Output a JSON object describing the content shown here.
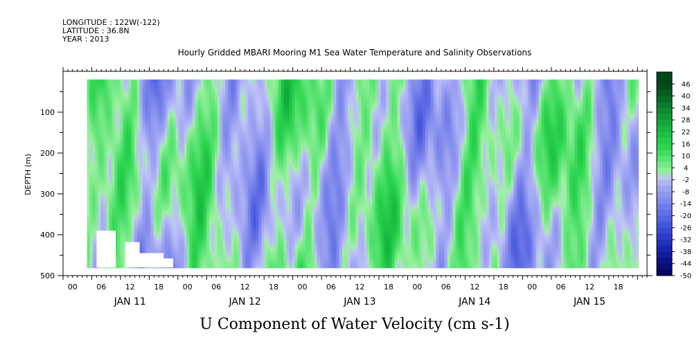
{
  "meta": {
    "longitude": "LONGITUDE : 122W(-122)",
    "latitude": "LATITUDE : 36.8N",
    "year": "YEAR : 2013"
  },
  "chart_data": {
    "type": "heatmap",
    "title": "Hourly Gridded MBARI Mooring M1 Sea Water Temperature and Salinity Observations",
    "xlabel": "U Component of Water Velocity (cm s-1)",
    "ylabel": "DEPTH (m)",
    "y_range": [
      0,
      500
    ],
    "y_ticks": [
      100,
      200,
      300,
      400,
      500
    ],
    "x_range_hours": [
      0,
      122
    ],
    "x_hour_ticks": [
      "00",
      "06",
      "12",
      "18",
      "00",
      "06",
      "12",
      "18",
      "00",
      "06",
      "12",
      "18",
      "00",
      "06",
      "12",
      "18",
      "00",
      "06",
      "12",
      "18"
    ],
    "date_labels": [
      "JAN 11",
      "JAN 12",
      "JAN 13",
      "JAN 14",
      "JAN 15"
    ],
    "data_start_hour": 5,
    "data_top_depth": 20,
    "data_bottom_depth": 480,
    "colorbar_levels": [
      "46",
      "40",
      "34",
      "28",
      "22",
      "16",
      "10",
      "4",
      "-2",
      "-8",
      "-14",
      "-20",
      "-26",
      "-32",
      "-38",
      "-44",
      "-50"
    ],
    "colorbar_min": -50,
    "colorbar_max": 52,
    "colors": {
      "strong_negative": "#000066",
      "negative": "#9aa0f0",
      "weak_negative": "#b8bcf5",
      "weak_positive": "#8ff09a",
      "positive": "#2fd64f",
      "strong_positive": "#003d14"
    },
    "grid": false
  }
}
